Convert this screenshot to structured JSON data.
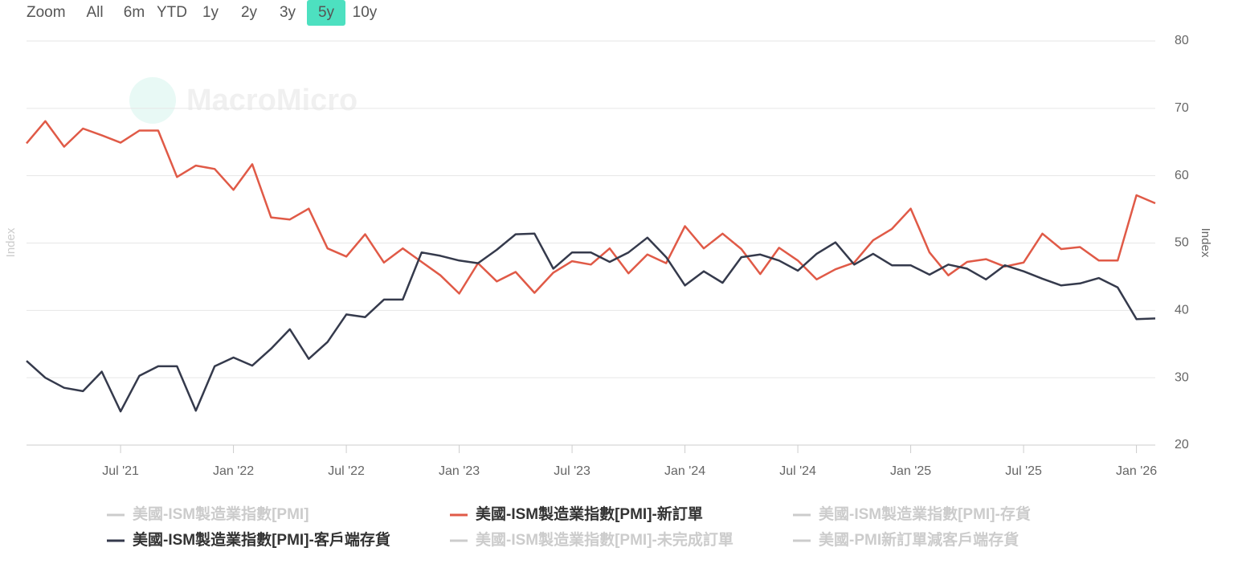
{
  "chart_data": {
    "type": "line",
    "zoom_label": "Zoom",
    "zoom_options": [
      "All",
      "6m",
      "YTD",
      "1y",
      "2y",
      "3y",
      "5y",
      "10y"
    ],
    "zoom_active": "5y",
    "watermark": "MacroMicro",
    "ylabel": "Index",
    "x": [
      "2021-02",
      "2021-03",
      "2021-04",
      "2021-05",
      "2021-06",
      "2021-07",
      "2021-08",
      "2021-09",
      "2021-10",
      "2021-11",
      "2021-12",
      "2022-01",
      "2022-02",
      "2022-03",
      "2022-04",
      "2022-05",
      "2022-06",
      "2022-07",
      "2022-08",
      "2022-09",
      "2022-10",
      "2022-11",
      "2022-12",
      "2023-01",
      "2023-02",
      "2023-03",
      "2023-04",
      "2023-05",
      "2023-06",
      "2023-07",
      "2023-08",
      "2023-09",
      "2023-10",
      "2023-11",
      "2023-12",
      "2024-01",
      "2024-02",
      "2024-03",
      "2024-04",
      "2024-05",
      "2024-06",
      "2024-07",
      "2024-08",
      "2024-09",
      "2024-10",
      "2024-11",
      "2024-12",
      "2025-01",
      "2025-02",
      "2025-03",
      "2025-04",
      "2025-05",
      "2025-06",
      "2025-07",
      "2025-08",
      "2025-09",
      "2025-10",
      "2025-11",
      "2025-12",
      "2026-01",
      "2026-02"
    ],
    "xticks": [
      {
        "value": "2021-07",
        "label": "Jul '21"
      },
      {
        "value": "2022-01",
        "label": "Jan '22"
      },
      {
        "value": "2022-07",
        "label": "Jul '22"
      },
      {
        "value": "2023-01",
        "label": "Jan '23"
      },
      {
        "value": "2023-07",
        "label": "Jul '23"
      },
      {
        "value": "2024-01",
        "label": "Jan '24"
      },
      {
        "value": "2024-07",
        "label": "Jul '24"
      },
      {
        "value": "2025-01",
        "label": "Jan '25"
      },
      {
        "value": "2025-07",
        "label": "Jul '25"
      },
      {
        "value": "2026-01",
        "label": "Jan '26"
      }
    ],
    "ylim": [
      20,
      80
    ],
    "yticks": [
      20,
      30,
      40,
      50,
      60,
      70,
      80
    ],
    "grid": true,
    "series": [
      {
        "name": "美國-ISM製造業指數[PMI]",
        "color": "#cccccc",
        "hidden": true
      },
      {
        "name": "美國-ISM製造業指數[PMI]-新訂單",
        "color": "#e05a47",
        "values": [
          64.8,
          68.1,
          64.3,
          67.0,
          66.0,
          64.9,
          66.7,
          66.7,
          59.8,
          61.5,
          61.0,
          57.9,
          61.7,
          53.8,
          53.5,
          55.1,
          49.2,
          48.0,
          51.3,
          47.1,
          49.2,
          47.2,
          45.2,
          42.5,
          47.0,
          44.3,
          45.7,
          42.6,
          45.6,
          47.3,
          46.8,
          49.2,
          45.5,
          48.3,
          47.0,
          52.5,
          49.2,
          51.4,
          49.1,
          45.4,
          49.3,
          47.4,
          44.6,
          46.1,
          47.1,
          50.4,
          52.1,
          55.1,
          48.6,
          45.2,
          47.2,
          47.6,
          46.5,
          47.1,
          51.4,
          49.1,
          49.4,
          47.4,
          47.4,
          57.1,
          55.9
        ]
      },
      {
        "name": "美國-ISM製造業指數[PMI]-存貨",
        "color": "#cccccc",
        "hidden": true
      },
      {
        "name": "美國-ISM製造業指數[PMI]-客戶端存貨",
        "color": "#353a4c",
        "values": [
          32.5,
          30.0,
          28.5,
          28.0,
          30.9,
          25.0,
          30.3,
          31.7,
          31.7,
          25.1,
          31.7,
          33.0,
          31.8,
          34.3,
          37.2,
          32.8,
          35.3,
          39.4,
          39.0,
          41.6,
          41.6,
          48.6,
          48.1,
          47.4,
          47.0,
          49.0,
          51.3,
          51.4,
          46.2,
          48.6,
          48.6,
          47.2,
          48.6,
          50.8,
          47.9,
          43.7,
          45.8,
          44.1,
          47.9,
          48.3,
          47.4,
          45.9,
          48.4,
          50.1,
          46.8,
          48.4,
          46.7,
          46.7,
          45.3,
          46.8,
          46.2,
          44.6,
          46.7,
          45.8,
          44.7,
          43.7,
          44.0,
          44.8,
          43.4,
          38.7,
          38.8
        ]
      },
      {
        "name": "美國-ISM製造業指數[PMI]-未完成訂單",
        "color": "#cccccc",
        "hidden": true
      },
      {
        "name": "美國-PMI新訂單減客戶端存貨",
        "color": "#cccccc",
        "hidden": true
      }
    ]
  }
}
